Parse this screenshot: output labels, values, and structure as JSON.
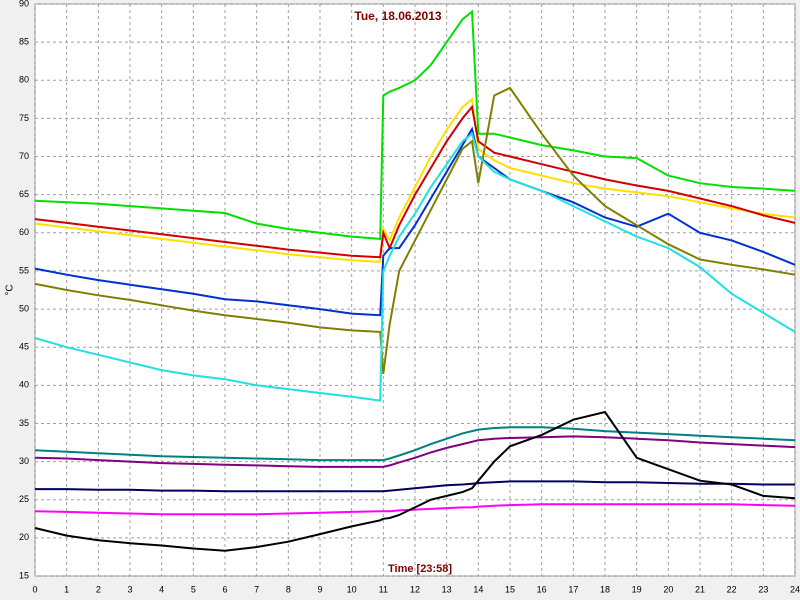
{
  "chart_data": {
    "type": "line",
    "title": "Tue, 18.06.2013",
    "x_label": "Time [23:58]",
    "y_label": "°C",
    "x": [
      0,
      1,
      2,
      3,
      4,
      5,
      6,
      7,
      8,
      9,
      10,
      10.9,
      11,
      11.2,
      11.5,
      12,
      12.5,
      13,
      13.5,
      13.8,
      14,
      14.5,
      15,
      16,
      17,
      18,
      19,
      20,
      21,
      22,
      23,
      24
    ],
    "series": [
      {
        "color": "#00e000",
        "values": [
          64.2,
          64,
          63.8,
          63.5,
          63.2,
          62.9,
          62.6,
          61.2,
          60.5,
          60,
          59.5,
          59.2,
          78,
          78.5,
          79,
          80,
          82,
          85,
          88,
          89,
          73,
          73,
          72.5,
          71.5,
          70.8,
          70,
          69.8,
          67.5,
          66.5,
          66,
          65.8,
          65.5
        ]
      },
      {
        "color": "#ffe000",
        "values": [
          61.2,
          60.7,
          60.2,
          59.7,
          59.2,
          58.7,
          58.2,
          57.7,
          57.2,
          56.8,
          56.4,
          56.2,
          60.5,
          59,
          62,
          66,
          70,
          73.5,
          76.5,
          77.5,
          71,
          69.5,
          68.5,
          67.5,
          66.5,
          65.8,
          65.3,
          64.8,
          64,
          63.2,
          62.5,
          62
        ]
      },
      {
        "color": "#d00000",
        "values": [
          61.8,
          61.3,
          60.8,
          60.3,
          59.8,
          59.3,
          58.8,
          58.3,
          57.8,
          57.4,
          57,
          56.8,
          60,
          58,
          61,
          65,
          68.5,
          72,
          75,
          76.5,
          72,
          70.5,
          70,
          69,
          68,
          67,
          66.2,
          65.5,
          64.5,
          63.5,
          62.3,
          61.3
        ]
      },
      {
        "color": "#0030d0",
        "values": [
          55.3,
          54.5,
          53.8,
          53.2,
          52.6,
          52,
          51.3,
          51,
          50.5,
          50,
          49.4,
          49.2,
          57,
          58,
          58,
          61,
          64.5,
          68,
          71.5,
          73.6,
          70,
          68.5,
          67,
          65.5,
          64,
          62,
          60.8,
          62.5,
          60,
          59,
          57.5,
          55.8
        ]
      },
      {
        "color": "#808000",
        "values": [
          53.3,
          52.5,
          51.8,
          51.2,
          50.5,
          49.8,
          49.2,
          48.7,
          48.2,
          47.6,
          47.2,
          47,
          41.5,
          48,
          55,
          59,
          63,
          67,
          71,
          72,
          66.5,
          78,
          79,
          73,
          67.5,
          63.5,
          61,
          58.5,
          56.5,
          55.8,
          55.2,
          54.5
        ]
      },
      {
        "color": "#20e0e0",
        "values": [
          46.2,
          45,
          44,
          43,
          42,
          41.3,
          40.8,
          40,
          39.5,
          39,
          38.5,
          38,
          55,
          57,
          59.5,
          62.5,
          66,
          69,
          72,
          73,
          70,
          68,
          67,
          65.5,
          63.5,
          61.5,
          59.5,
          58,
          55.5,
          52,
          49.5,
          47
        ]
      },
      {
        "color": "#008080",
        "values": [
          31.5,
          31.3,
          31.1,
          30.9,
          30.7,
          30.6,
          30.5,
          30.4,
          30.3,
          30.2,
          30.2,
          30.2,
          30.2,
          30.4,
          30.8,
          31.5,
          32.3,
          33,
          33.7,
          34,
          34.2,
          34.4,
          34.5,
          34.5,
          34.3,
          34,
          33.8,
          33.6,
          33.4,
          33.2,
          33,
          32.8
        ]
      },
      {
        "color": "#800080",
        "values": [
          30.5,
          30.4,
          30.2,
          30,
          29.8,
          29.7,
          29.6,
          29.5,
          29.4,
          29.3,
          29.3,
          29.3,
          29.3,
          29.5,
          29.9,
          30.5,
          31.2,
          31.8,
          32.3,
          32.6,
          32.8,
          33,
          33.1,
          33.2,
          33.3,
          33.2,
          33,
          32.8,
          32.5,
          32.3,
          32.1,
          31.9
        ]
      },
      {
        "color": "#000060",
        "values": [
          26.4,
          26.4,
          26.3,
          26.3,
          26.2,
          26.2,
          26.1,
          26.1,
          26.1,
          26.1,
          26.1,
          26.1,
          26.1,
          26.2,
          26.3,
          26.5,
          26.7,
          26.9,
          27,
          27.1,
          27.2,
          27.3,
          27.4,
          27.4,
          27.4,
          27.3,
          27.3,
          27.2,
          27.1,
          27.1,
          27,
          27
        ]
      },
      {
        "color": "#ff00ff",
        "values": [
          23.5,
          23.4,
          23.3,
          23.2,
          23.1,
          23.1,
          23.1,
          23.1,
          23.2,
          23.3,
          23.4,
          23.5,
          23.5,
          23.5,
          23.6,
          23.7,
          23.8,
          23.9,
          24,
          24,
          24.1,
          24.2,
          24.3,
          24.4,
          24.4,
          24.4,
          24.4,
          24.4,
          24.4,
          24.4,
          24.3,
          24.2
        ]
      },
      {
        "color": "#000000",
        "values": [
          21.3,
          20.3,
          19.7,
          19.3,
          19,
          18.6,
          18.3,
          18.8,
          19.5,
          20.5,
          21.5,
          22.3,
          22.5,
          22.6,
          23,
          24,
          25,
          25.5,
          26,
          26.5,
          27.5,
          30,
          32,
          33.5,
          35.5,
          36.5,
          30.5,
          29,
          27.5,
          27,
          25.5,
          25.2
        ]
      }
    ],
    "xlim": [
      0,
      24
    ],
    "xticks": [
      0,
      1,
      2,
      3,
      4,
      5,
      6,
      7,
      8,
      9,
      10,
      11,
      12,
      13,
      14,
      15,
      16,
      17,
      18,
      19,
      20,
      21,
      22,
      23,
      24
    ],
    "ylim": [
      15,
      90
    ],
    "yticks": [
      15,
      20,
      25,
      30,
      35,
      40,
      45,
      50,
      55,
      60,
      65,
      70,
      75,
      80,
      85,
      90
    ],
    "grid": true
  }
}
